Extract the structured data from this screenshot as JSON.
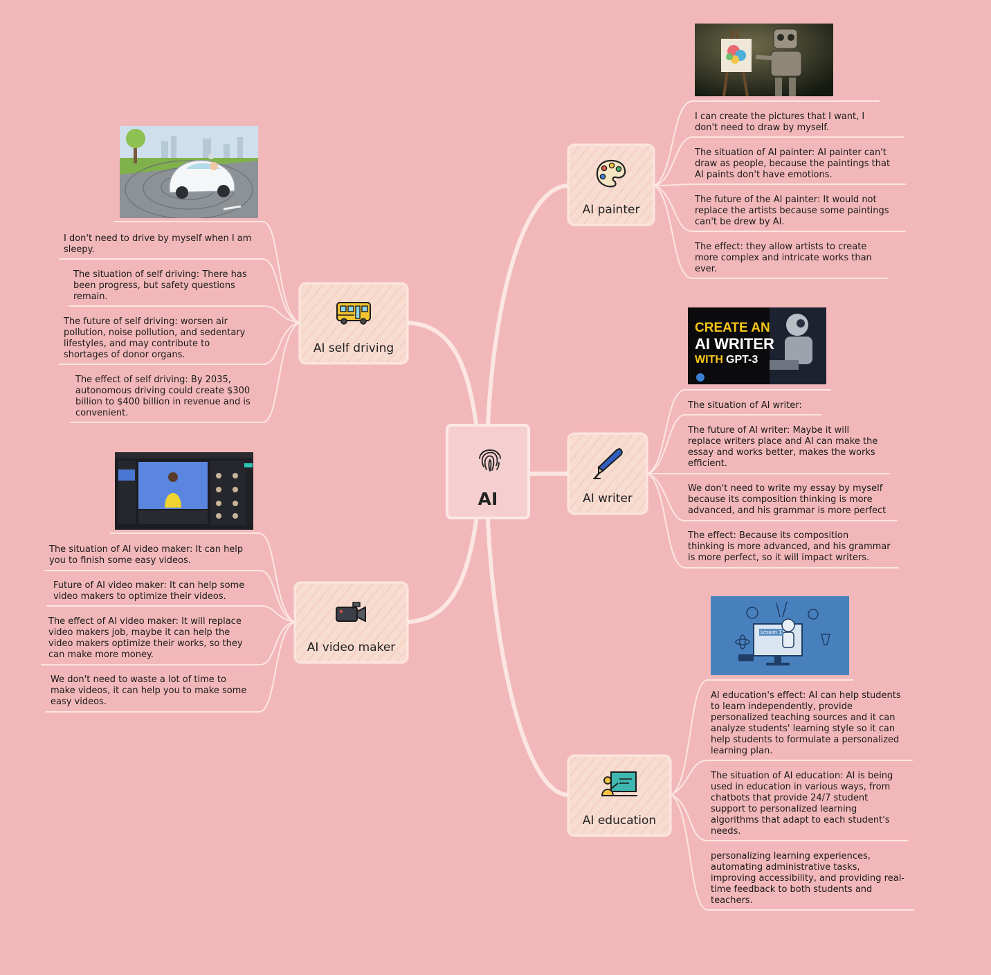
{
  "center": {
    "label": "AI",
    "icon": "fingerprint-icon"
  },
  "branches": {
    "painter": {
      "label": "AI painter",
      "icon": "palette-icon",
      "image": "robot-painting-at-easel",
      "notes": [
        [
          "I can create the pictures that I want, I",
          "don't need to draw by myself."
        ],
        [
          "The situation of AI painter: AI painter can't",
          "draw as people, because the paintings that",
          "AI paints don't have emotions."
        ],
        [
          "The future of the AI painter: It would not",
          "replace the artists because some paintings",
          "can't be drew by AI."
        ],
        [
          "The effect: they allow artists to create",
          "more complex and intricate works than",
          "ever."
        ]
      ]
    },
    "writer": {
      "label": "AI writer",
      "icon": "pen-icon",
      "image": {
        "line1": "CREATE AN",
        "line2": "AI WRITER",
        "line3a": "WITH",
        "line3b": "GPT-3"
      },
      "notes": [
        [
          "The situation of AI writer:"
        ],
        [
          "The future of AI writer: Maybe it will",
          "replace writers place and AI can make the",
          "essay and works better, makes the works",
          "efficient."
        ],
        [
          "We don't need to write my essay by myself",
          "because its composition thinking is more",
          "advanced, and his grammar is more perfect"
        ],
        [
          "The effect: Because its composition",
          "thinking is more advanced, and his grammar",
          "is more perfect, so it will impact writers."
        ]
      ]
    },
    "education": {
      "label": "AI education",
      "icon": "teacher-icon",
      "image": {
        "screen_text": "Lesson 1"
      },
      "notes": [
        [
          "AI education's effect: AI can help students",
          "to learn independently, provide",
          "personalized teaching sources and it can",
          "analyze students' learning style so it can",
          "help students to formulate a personalized",
          "learning plan."
        ],
        [
          "The situation of AI education: AI is being",
          "used in education in various ways, from",
          "chatbots that provide 24/7 student",
          "support to personalized learning",
          "algorithms that adapt to each student's",
          "needs."
        ],
        [
          "personalizing learning experiences,",
          "automating administrative tasks,",
          "improving accessibility, and providing real-",
          "time feedback to both students and",
          "teachers."
        ]
      ]
    },
    "self_driving": {
      "label": "AI self driving",
      "icon": "bus-icon",
      "image": "self-driving-car",
      "notes": [
        [
          "I don't need to drive by myself when I am",
          "sleepy."
        ],
        [
          "The situation of self driving: There has",
          "been progress, but safety questions",
          "remain."
        ],
        [
          "The future of self driving: worsen air",
          "pollution, noise pollution, and sedentary",
          "lifestyles, and may contribute to",
          "shortages of donor organs."
        ],
        [
          "The effect of self driving: By 2035,",
          "autonomous driving could create $300",
          "billion to $400 billion in revenue and is",
          "convenient."
        ]
      ]
    },
    "video_maker": {
      "label": "AI video maker",
      "icon": "video-camera-icon",
      "image": "ai-video-editor-screenshot",
      "notes": [
        [
          "The situation of AI video maker: It can help",
          "you to finish some easy videos."
        ],
        [
          "Future of AI video maker: It can help some",
          "video makers to optimize their videos."
        ],
        [
          "The effect of AI video maker: It will replace",
          "video makers job, maybe it can help the",
          "video makers optimize their works, so they",
          "can make more money."
        ],
        [
          "We don't need to waste a lot of time to",
          "make videos, it can help you to make some",
          "easy videos."
        ]
      ]
    }
  },
  "colors": {
    "background": "#f2b8b9",
    "node_fill": "#f7dcd0",
    "connector": "#fbe6e2"
  }
}
